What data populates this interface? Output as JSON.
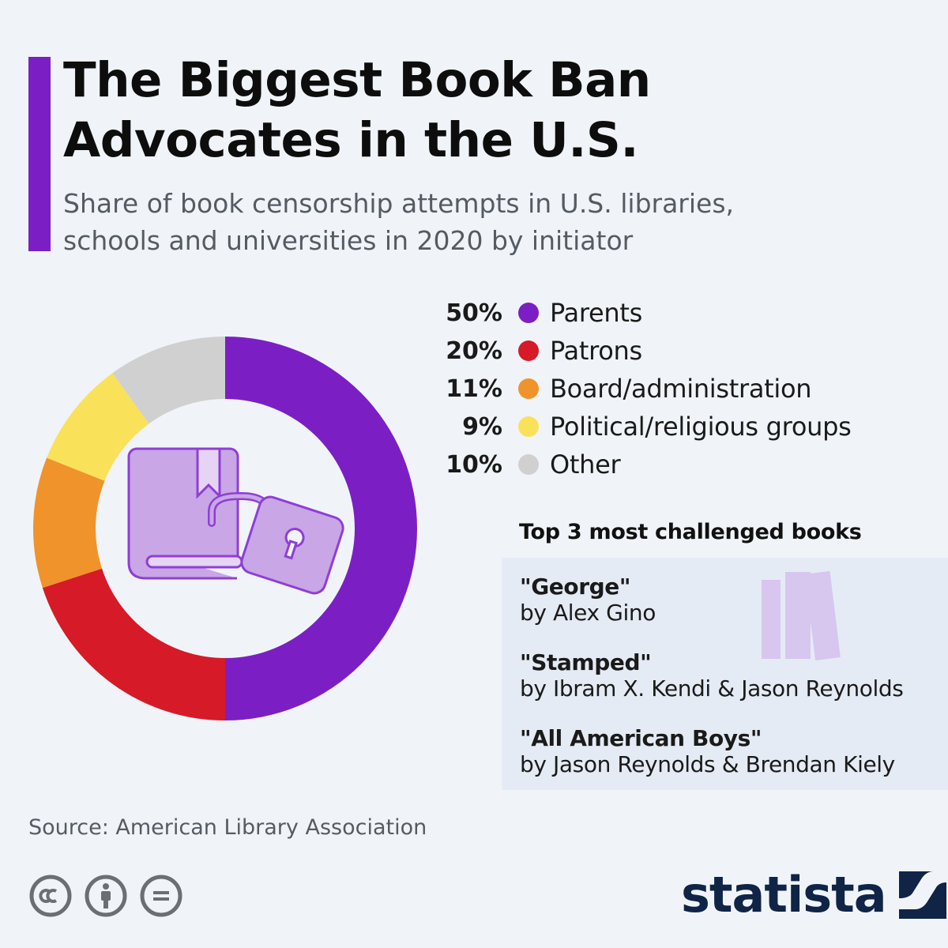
{
  "title_lines": [
    "The Biggest Book Ban",
    "Advocates in the U.S."
  ],
  "subtitle_lines": [
    "Share of book censorship attempts in U.S. libraries,",
    "schools and universities in 2020 by initiator"
  ],
  "chart_data": {
    "type": "pie",
    "style": "donut",
    "title": "The Biggest Book Ban Advocates in the U.S.",
    "subtitle": "Share of book censorship attempts in U.S. libraries, schools and universities in 2020 by initiator",
    "categories": [
      "Parents",
      "Patrons",
      "Board/administration",
      "Political/religious groups",
      "Other"
    ],
    "values": [
      50,
      20,
      11,
      9,
      10
    ],
    "unit": "%",
    "colors": [
      "#7b1fc4",
      "#d71a27",
      "#f0932a",
      "#fae15a",
      "#d0d0d0"
    ],
    "legend_position": "right"
  },
  "legend": [
    {
      "pct": "50%",
      "label": "Parents",
      "color": "#7b1fc4"
    },
    {
      "pct": "20%",
      "label": "Patrons",
      "color": "#d71a27"
    },
    {
      "pct": "11%",
      "label": "Board/administration",
      "color": "#f0932a"
    },
    {
      "pct": "9%",
      "label": "Political/religious groups",
      "color": "#fae15a"
    },
    {
      "pct": "10%",
      "label": "Other",
      "color": "#d0d0d0"
    }
  ],
  "books": {
    "heading": "Top 3 most challenged books",
    "items": [
      {
        "title": "\"George\"",
        "author": "by Alex Gino"
      },
      {
        "title": "\"Stamped\"",
        "author": "by Ibram X. Kendi & Jason Reynolds"
      },
      {
        "title": "\"All American Boys\"",
        "author": "by Jason Reynolds & Brendan Kiely"
      }
    ]
  },
  "source": "Source: American Library Association",
  "license_icons": [
    "creative-commons-icon",
    "attribution-icon",
    "no-derivatives-icon"
  ],
  "brand": {
    "name": "statista",
    "color": "#0f2446"
  },
  "accent_color": "#7b1fc4"
}
